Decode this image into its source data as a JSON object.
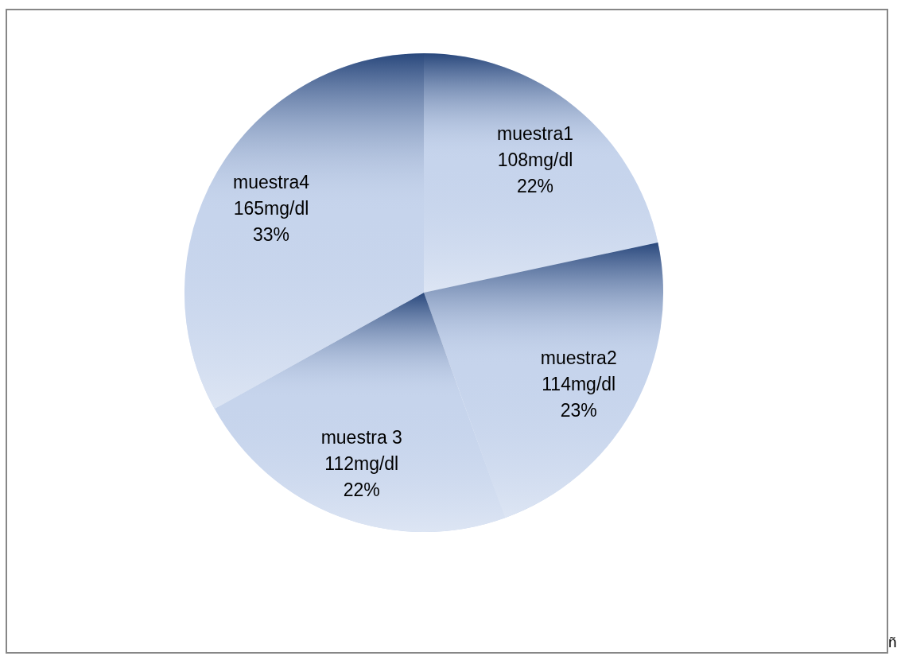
{
  "chart_data": {
    "type": "pie",
    "categories": [
      "muestra1",
      "muestra2",
      "muestra 3",
      "muestra4"
    ],
    "values": [
      108,
      114,
      112,
      165
    ],
    "value_labels": [
      "108mg/dl\n22%",
      "114mg/dl\n23%",
      "112mg/dl\n22%",
      "165mg/dl\n33%"
    ],
    "colors": [
      "#c6d4ec",
      "#c6d4ec",
      "#c6d4ec",
      "#c6d4ec"
    ],
    "annotations": [
      "ñ"
    ]
  }
}
